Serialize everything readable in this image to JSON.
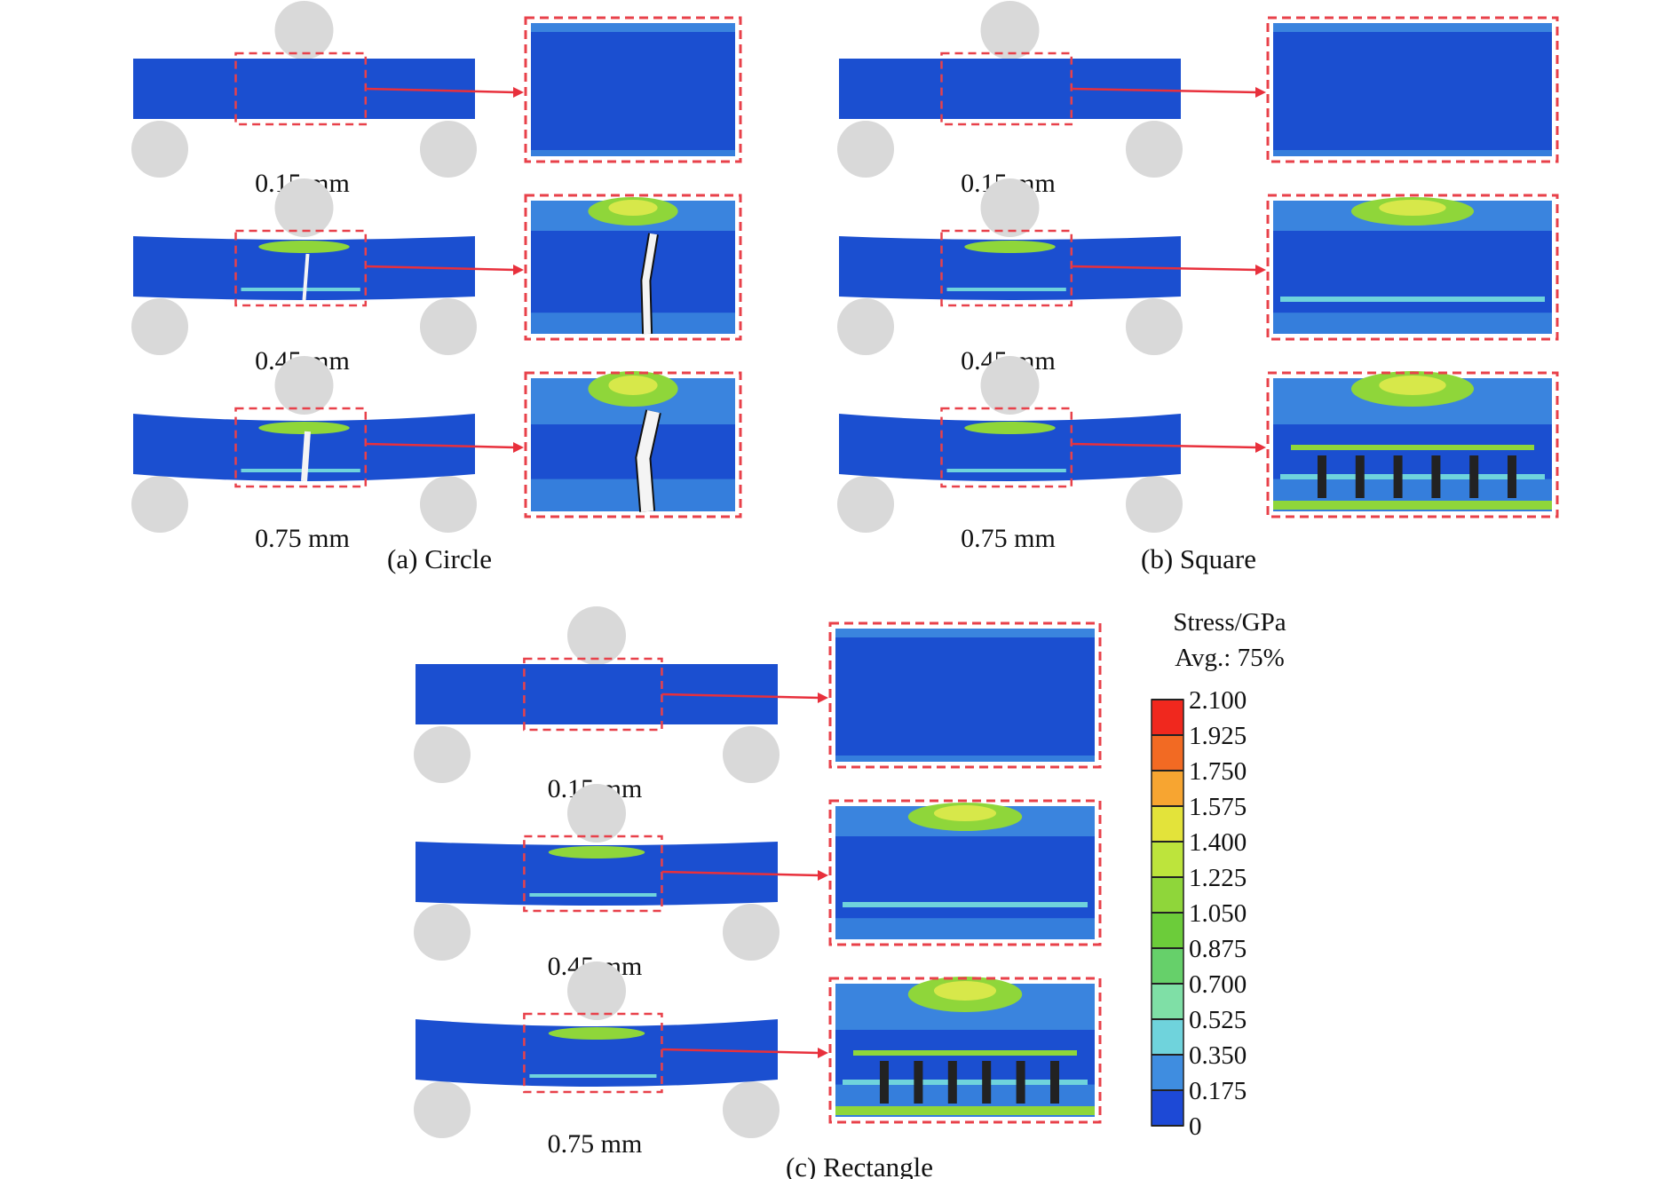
{
  "panels": [
    {
      "caption": "(a) Circle",
      "shape": "circle",
      "displacements": [
        "0.15 mm",
        "0.45 mm",
        "0.75 mm"
      ]
    },
    {
      "caption": "(b) Square",
      "shape": "square",
      "displacements": [
        "0.15 mm",
        "0.45 mm",
        "0.75 mm"
      ]
    },
    {
      "caption": "(c) Rectangle",
      "shape": "rectangle",
      "displacements": [
        "0.15 mm",
        "0.45 mm",
        "0.75 mm"
      ]
    }
  ],
  "legend": {
    "title": "Stress/GPa",
    "subtitle": "Avg.: 75%",
    "ticks": [
      "2.100",
      "1.925",
      "1.750",
      "1.575",
      "1.400",
      "1.225",
      "1.050",
      "0.875",
      "0.700",
      "0.525",
      "0.350",
      "0.175",
      "0"
    ],
    "colors": [
      "#f0281e",
      "#f26a23",
      "#f7a531",
      "#e3e33a",
      "#bde43c",
      "#8fd63a",
      "#6ccc3a",
      "#66d06a",
      "#7fdfa6",
      "#6fd3dc",
      "#3f8de0",
      "#1d49d6"
    ]
  },
  "colors": {
    "beam": "#1b4fd0",
    "beam_dark": "#1540b8",
    "light_blue": "#3f8de0",
    "cyan": "#6fd3dc",
    "green": "#8fd63a",
    "support": "#d9d9d9",
    "dash": "#e8414a",
    "arrow": "#e8303c"
  }
}
